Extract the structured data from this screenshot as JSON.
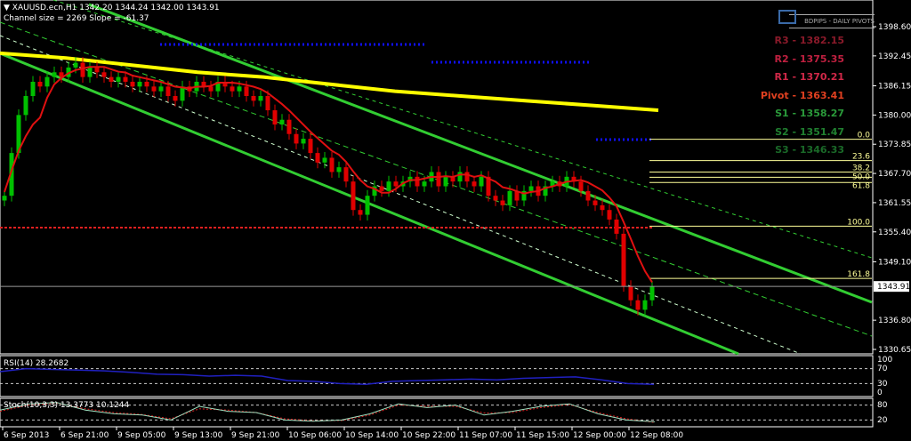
{
  "header": {
    "symbol_line": "XAUUSD.ecn,H1  1342.20 1344.24 1342.00 1343.91",
    "channel_info": "Channel size = 2269 Slope = -61.37"
  },
  "pivots": {
    "title": "BDPIPS - DAILY PIVOTS",
    "levels": [
      {
        "label": "R3 - 1382.15",
        "color": "#8b1a2a"
      },
      {
        "label": "R2 - 1375.35",
        "color": "#c02040"
      },
      {
        "label": "R1 - 1370.21",
        "color": "#d02848"
      },
      {
        "label": "Pivot - 1363.41",
        "color": "#e04020"
      },
      {
        "label": "S1 - 1358.27",
        "color": "#2a9a3a"
      },
      {
        "label": "S2 - 1351.47",
        "color": "#208030"
      },
      {
        "label": "S3 - 1346.33",
        "color": "#1a6a28"
      }
    ]
  },
  "fib_levels": [
    {
      "label": "0.0",
      "price": 1374.9
    },
    {
      "label": "23.6",
      "price": 1370.4
    },
    {
      "label": "38.2",
      "price": 1368.0
    },
    {
      "label": "50.0",
      "price": 1366.9
    },
    {
      "label": "61.8",
      "price": 1365.8
    },
    {
      "label": "100.0",
      "price": 1356.6
    },
    {
      "label": "161.8",
      "price": 1345.6
    }
  ],
  "chart_data": {
    "type": "candlestick",
    "symbol": "XAUUSD.ecn",
    "timeframe": "H1",
    "ohlc_last": {
      "open": 1342.2,
      "high": 1344.24,
      "low": 1342.0,
      "close": 1343.91
    },
    "price_axis": {
      "ticks": [
        "1398.60",
        "1392.45",
        "1386.15",
        "1380.00",
        "1373.85",
        "1367.70",
        "1361.55",
        "1355.40",
        "1349.10",
        "1343.91",
        "1336.80",
        "1330.65"
      ],
      "range": [
        1330.65,
        1398.6
      ]
    },
    "current_price_label": "1343.91",
    "time_axis": [
      "6 Sep 2013",
      "6 Sep 21:00",
      "9 Sep 05:00",
      "9 Sep 13:00",
      "9 Sep 21:00",
      "10 Sep 06:00",
      "10 Sep 14:00",
      "10 Sep 22:00",
      "11 Sep 07:00",
      "11 Sep 15:00",
      "12 Sep 00:00",
      "12 Sep 08:00"
    ],
    "closes": [
      1363,
      1372,
      1380,
      1384,
      1387,
      1386,
      1388,
      1389,
      1388,
      1390,
      1391,
      1388,
      1390,
      1389,
      1388,
      1387,
      1388,
      1387,
      1386,
      1387,
      1386,
      1385,
      1386,
      1384,
      1383,
      1386,
      1385,
      1387,
      1386,
      1385,
      1387,
      1386,
      1385,
      1386,
      1384,
      1383,
      1384,
      1381,
      1378,
      1379,
      1376,
      1374,
      1375,
      1372,
      1370,
      1371,
      1368,
      1369,
      1366,
      1360,
      1359,
      1363,
      1365,
      1364,
      1366,
      1365,
      1366,
      1367,
      1365,
      1366,
      1368,
      1365,
      1367,
      1366,
      1368,
      1366,
      1365,
      1367,
      1363,
      1362,
      1361,
      1364,
      1362,
      1364,
      1365,
      1363,
      1365,
      1366,
      1365,
      1367,
      1366,
      1364,
      1362,
      1361,
      1360,
      1358,
      1355,
      1344,
      1341,
      1339,
      1341,
      1343.91
    ],
    "ma_slow": [
      1393,
      1392,
      1390.5,
      1389,
      1388,
      1386.5,
      1385,
      1384,
      1383,
      1382,
      1381
    ],
    "colors": {
      "bull": "#00c000",
      "bear": "#e00000",
      "ma_slow": "#ffff00",
      "ma_fast": "#e01010",
      "channel": "#32cd32",
      "pivot_dots": "#1010ff",
      "fib": "#ffff99"
    },
    "rsi": {
      "label": "RSI(14) 28.2682",
      "levels": [
        "100",
        "70",
        "30",
        "0"
      ],
      "values": [
        62,
        70,
        68,
        66,
        64,
        60,
        55,
        54,
        50,
        52,
        50,
        38,
        36,
        30,
        28,
        36,
        38,
        40,
        42,
        40,
        44,
        46,
        48,
        40,
        30,
        28
      ]
    },
    "stoch": {
      "label": "Stoch(10,3,3) 13.3773 10.1244",
      "levels": [
        "80",
        "20"
      ],
      "main": [
        60,
        85,
        90,
        60,
        45,
        40,
        20,
        75,
        55,
        50,
        20,
        15,
        20,
        45,
        85,
        70,
        80,
        40,
        55,
        75,
        85,
        45,
        20,
        13
      ],
      "signal": [
        55,
        80,
        88,
        65,
        50,
        42,
        25,
        65,
        60,
        50,
        25,
        17,
        18,
        40,
        80,
        75,
        75,
        48,
        50,
        70,
        82,
        50,
        25,
        10
      ]
    }
  }
}
